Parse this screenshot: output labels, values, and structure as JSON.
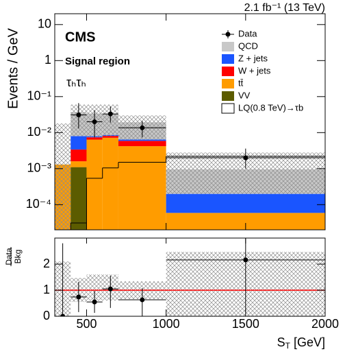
{
  "chart_data": [
    {
      "type": "histogram",
      "stacked": true,
      "log_y": true,
      "lumi": "2.1 fb⁻¹ (13 TeV)",
      "experiment": "CMS",
      "region": "Signal region",
      "channel": "τₕτₕ",
      "y_label": "Events / GeV",
      "bins": [
        300,
        400,
        500,
        600,
        700,
        1000,
        2000
      ],
      "xlim": [
        300,
        2000
      ],
      "xticks": [
        500,
        1000,
        1500,
        2000
      ],
      "ylim": [
        2e-05,
        20
      ],
      "yticks": [
        {
          "value": 0.0001,
          "label": "10⁻⁴"
        },
        {
          "value": 0.001,
          "label": "10⁻³"
        },
        {
          "value": 0.01,
          "label": "10⁻²"
        },
        {
          "value": 0.1,
          "label": "10⁻¹"
        },
        1,
        10
      ],
      "series": [
        {
          "name": "VV",
          "color": "#5c5c00",
          "values": [
            0,
            0.0011,
            0,
            0,
            0,
            0
          ]
        },
        {
          "name": "tt̄",
          "color": "#ff9c00",
          "values": [
            0.0013,
            0.0005,
            0.0064,
            0.0072,
            0.0042,
            5.9e-05
          ]
        },
        {
          "name": "W + jets",
          "color": "#ff0000",
          "values": [
            0,
            0.0018,
            0.001,
            0.0009,
            0.0017,
            0
          ]
        },
        {
          "name": "Z + jets",
          "color": "#1a55ff",
          "values": [
            0,
            0.0046,
            0.0006,
            0.0005,
            0.0005,
            0.00014
          ]
        },
        {
          "name": "QCD",
          "color": "#c8c8c8",
          "values": [
            0,
            0.029,
            0.026,
            0.025,
            0.0129,
            0.00076
          ]
        }
      ],
      "legend_order": [
        4,
        3,
        2,
        1,
        0
      ],
      "band_low": [
        2e-05,
        0.008,
        0.0074,
        0.008,
        0.0064,
        0.0002
      ],
      "band_high": [
        0.018,
        0.06,
        0.06,
        0.06,
        0.03,
        0.0028
      ],
      "signal": {
        "name": "LQ(0.8 TeV)→τb",
        "color": "#000000",
        "values": [
          null,
          3.1e-05,
          0.00054,
          0.00105,
          0.0015,
          0.0022
        ]
      },
      "data": {
        "name": "Data",
        "color": "#000000",
        "x": [
          450,
          550,
          650,
          850,
          1500
        ],
        "values": [
          0.031,
          0.02,
          0.033,
          0.0136,
          0.002
        ],
        "yerr_low": [
          0.018,
          0.0126,
          0.014,
          0.0062,
          0.001
        ],
        "yerr_high": [
          0.035,
          0.022,
          0.02,
          0.0074,
          0.0016
        ]
      }
    },
    {
      "type": "ratio",
      "y_label_num": "Data",
      "y_label_den": "Bkg",
      "x_label_main": "S",
      "x_label_sub": "T",
      "x_label_unit": "[GeV]",
      "bins": [
        300,
        400,
        500,
        600,
        700,
        1000,
        2000
      ],
      "xlim": [
        300,
        2000
      ],
      "xticks": [
        500,
        1000,
        1500,
        2000
      ],
      "ylim": [
        0,
        3
      ],
      "yticks": [
        0,
        1,
        2
      ],
      "reference_line": 1,
      "band_low": [
        0,
        0.55,
        0.6,
        0.6,
        0.66,
        0
      ],
      "band_high": [
        2.1,
        1.47,
        1.6,
        1.6,
        1.34,
        2.47
      ],
      "data": {
        "x": [
          350,
          450,
          550,
          650,
          850,
          1500
        ],
        "values": [
          0,
          0.74,
          0.55,
          1.05,
          0.63,
          2.16
        ],
        "yerr_low": [
          0,
          0.58,
          0.42,
          0.73,
          0.63,
          1.98
        ],
        "yerr_high": [
          2.8,
          0.58,
          0.42,
          0.5,
          0.45,
          0.84
        ]
      }
    }
  ]
}
